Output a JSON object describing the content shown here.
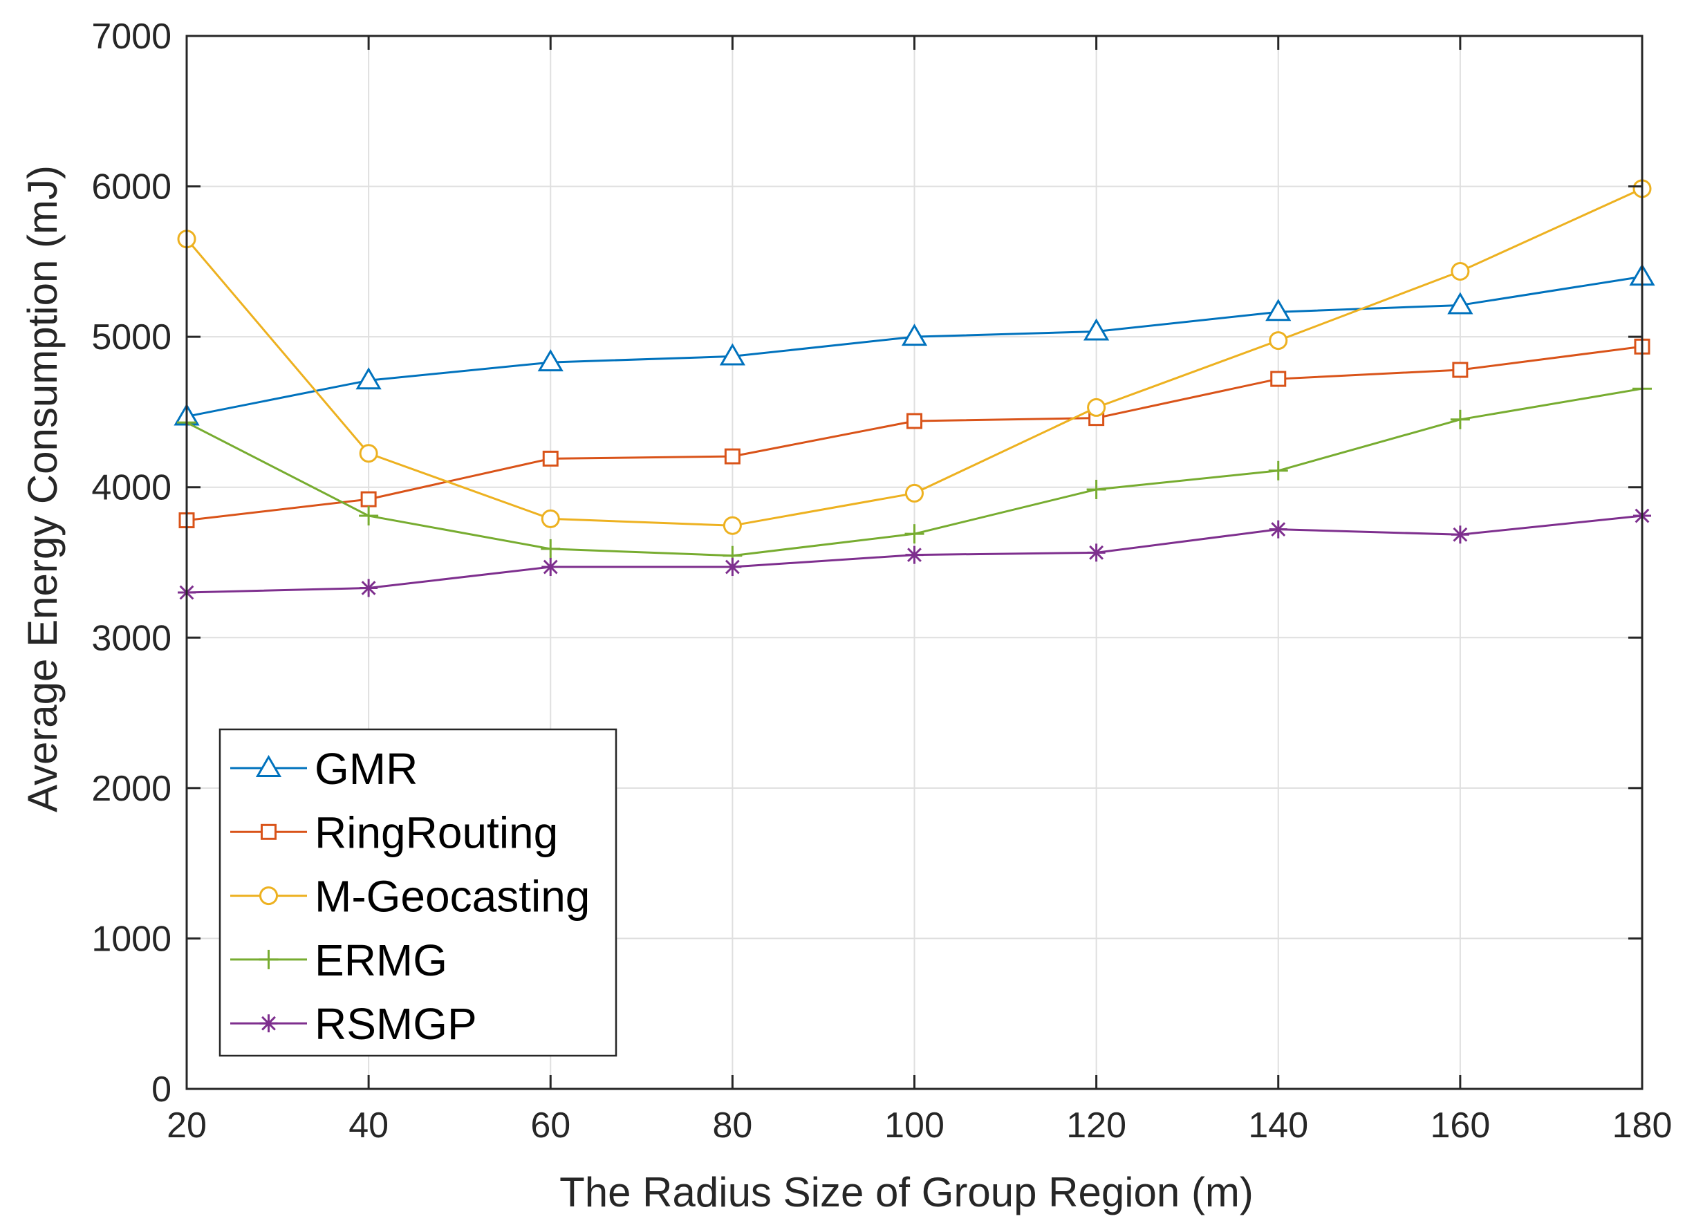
{
  "chart_data": {
    "type": "line",
    "title": "",
    "xlabel": "The Radius Size of Group Region (m)",
    "ylabel": "Average Energy Consumption (mJ)",
    "x": [
      20,
      40,
      60,
      80,
      100,
      120,
      140,
      160,
      180
    ],
    "xlim": [
      20,
      180
    ],
    "ylim": [
      0,
      7000
    ],
    "xticks": [
      20,
      40,
      60,
      80,
      100,
      120,
      140,
      160,
      180
    ],
    "yticks": [
      0,
      1000,
      2000,
      3000,
      4000,
      5000,
      6000,
      7000
    ],
    "xtick_labels": [
      "20",
      "40",
      "60",
      "80",
      "100",
      "120",
      "140",
      "160",
      "180"
    ],
    "ytick_labels": [
      "0",
      "1000",
      "2000",
      "3000",
      "4000",
      "5000",
      "6000",
      "7000"
    ],
    "grid": true,
    "legend_position": "bottom-left",
    "series": [
      {
        "name": "GMR",
        "marker": "triangle",
        "color": "#0072BD",
        "values": [
          4470,
          4710,
          4830,
          4870,
          5000,
          5035,
          5165,
          5210,
          5400
        ]
      },
      {
        "name": "RingRouting",
        "marker": "square",
        "color": "#D95319",
        "values": [
          3780,
          3920,
          4190,
          4205,
          4440,
          4460,
          4720,
          4780,
          4935
        ]
      },
      {
        "name": "M-Geocasting",
        "marker": "circle",
        "color": "#EDB120",
        "values": [
          5650,
          4225,
          3790,
          3745,
          3960,
          4530,
          4975,
          5435,
          5985
        ]
      },
      {
        "name": "ERMG",
        "marker": "plus",
        "color": "#77AC30",
        "values": [
          4430,
          3810,
          3590,
          3545,
          3690,
          3985,
          4110,
          4450,
          4655
        ]
      },
      {
        "name": "RSMGP",
        "marker": "asterisk",
        "color": "#7E2F8E",
        "values": [
          3300,
          3330,
          3470,
          3470,
          3550,
          3565,
          3720,
          3685,
          3810
        ]
      }
    ]
  }
}
